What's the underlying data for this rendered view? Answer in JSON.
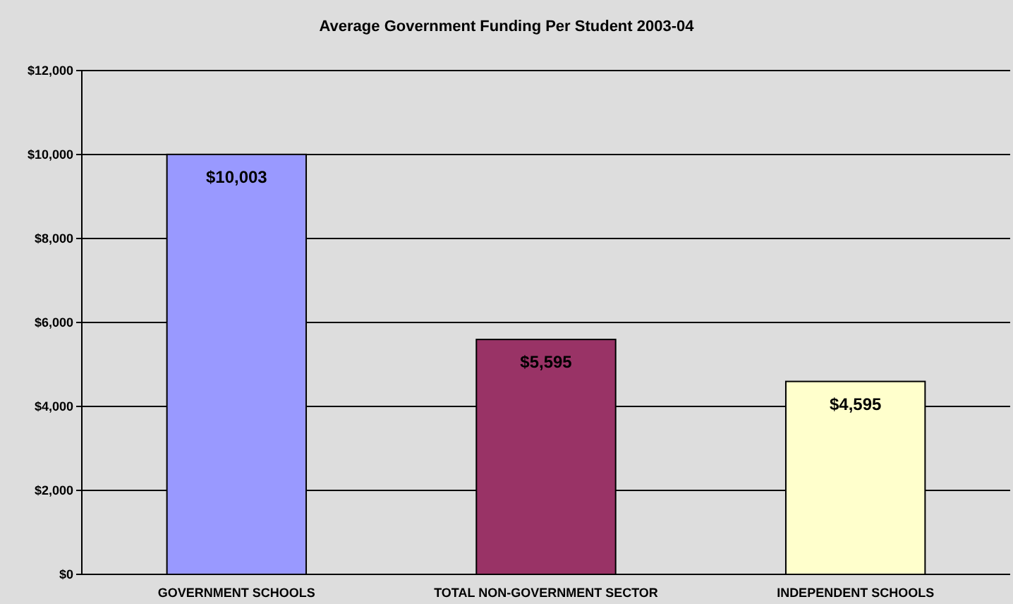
{
  "chart_data": {
    "type": "bar",
    "title": "Average Government Funding Per Student 2003-04",
    "categories": [
      "GOVERNMENT SCHOOLS",
      "TOTAL NON-GOVERNMENT SECTOR",
      "INDEPENDENT SCHOOLS"
    ],
    "values": [
      10003,
      5595,
      4595
    ],
    "colors": [
      "#9999ff",
      "#993366",
      "#ffffcc"
    ],
    "value_labels": [
      "$10,003",
      "$5,595",
      "$4,595"
    ],
    "ylim": [
      0,
      12000
    ],
    "yticks": [
      {
        "value": 0,
        "label": "$0"
      },
      {
        "value": 2000,
        "label": "$2,000"
      },
      {
        "value": 4000,
        "label": "$4,000"
      },
      {
        "value": 6000,
        "label": "$6,000"
      },
      {
        "value": 8000,
        "label": "$8,000"
      },
      {
        "value": 10000,
        "label": "$10,000"
      },
      {
        "value": 12000,
        "label": "$12,000"
      }
    ],
    "grid": "y"
  }
}
